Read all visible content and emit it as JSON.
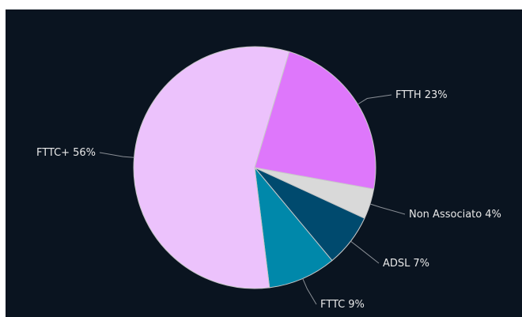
{
  "chart_data": {
    "type": "pie",
    "categories": [
      "FTTH",
      "Non Associato",
      "ADSL",
      "FTTC",
      "FTTC+"
    ],
    "values": [
      23,
      4,
      7,
      9,
      56
    ],
    "value_labels": [
      "23%",
      "4%",
      "7%",
      "9%",
      "56%"
    ],
    "colors": [
      "#de77fb",
      "#d9d9d9",
      "#004a6e",
      "#0088aa",
      "#ecc2fc"
    ]
  }
}
